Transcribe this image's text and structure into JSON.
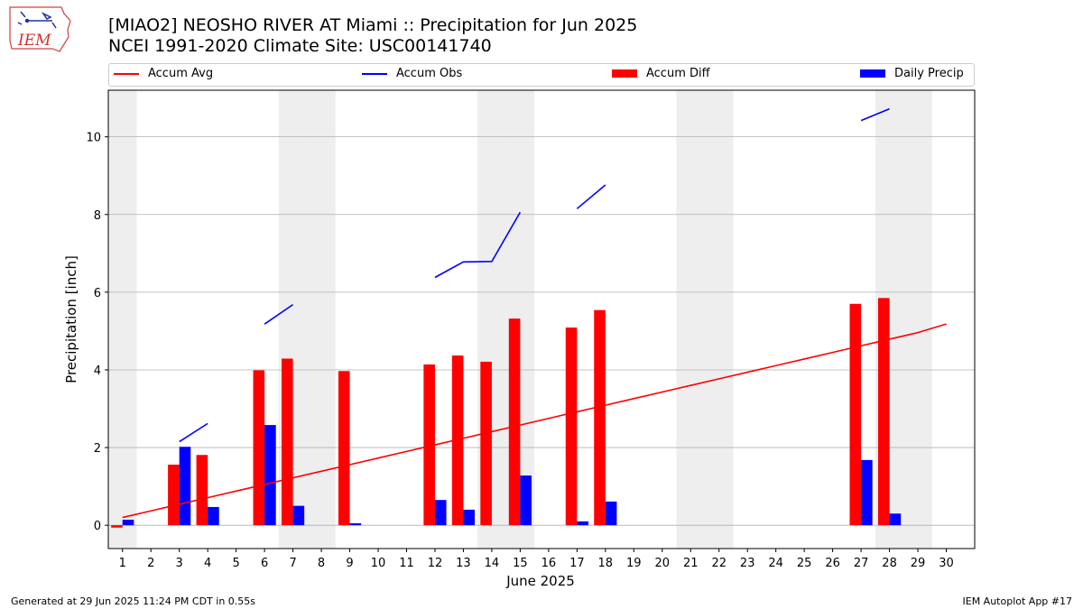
{
  "logo": {
    "text": "IEM"
  },
  "header": {
    "title": "[MIAO2] NEOSHO RIVER  AT Miami :: Precipitation for Jun 2025",
    "subtitle": "NCEI 1991-2020 Climate Site: USC00141740"
  },
  "legend": {
    "accum_avg": "Accum Avg",
    "accum_obs": "Accum Obs",
    "accum_diff": "Accum Diff",
    "daily_precip": "Daily Precip"
  },
  "colors": {
    "accum_avg": "#ff0000",
    "accum_obs": "#0000ff",
    "accum_diff": "#ff0000",
    "daily_precip": "#0000ff",
    "weekend_shade": "#eeeeee",
    "grid": "#b0b0b0"
  },
  "chart_data": {
    "type": "bar",
    "xlabel": "June 2025",
    "ylabel": "Precipitation [inch]",
    "xlim": [
      0.5,
      31
    ],
    "ylim": [
      -0.6,
      11.2
    ],
    "yticks": [
      0,
      2,
      4,
      6,
      8,
      10
    ],
    "grid": "horizontal",
    "legend_position": "top",
    "x": [
      1,
      2,
      3,
      4,
      5,
      6,
      7,
      8,
      9,
      10,
      11,
      12,
      13,
      14,
      15,
      16,
      17,
      18,
      19,
      20,
      21,
      22,
      23,
      24,
      25,
      26,
      27,
      28,
      29,
      30
    ],
    "weekend_days": [
      1,
      7,
      8,
      14,
      15,
      21,
      22,
      28,
      29
    ],
    "series": [
      {
        "name": "Accum Avg",
        "type": "line",
        "values": [
          0.2,
          0.37,
          0.54,
          0.71,
          0.88,
          1.05,
          1.22,
          1.39,
          1.56,
          1.73,
          1.9,
          2.07,
          2.24,
          2.41,
          2.58,
          2.75,
          2.92,
          3.09,
          3.26,
          3.43,
          3.6,
          3.77,
          3.94,
          4.11,
          4.28,
          4.45,
          4.62,
          4.79,
          4.96,
          5.18
        ]
      },
      {
        "name": "Accum Obs",
        "type": "line",
        "segments": [
          {
            "x": [
              3,
              4
            ],
            "y": [
              2.15,
              2.62
            ]
          },
          {
            "x": [
              6,
              7
            ],
            "y": [
              5.18,
              5.68
            ]
          },
          {
            "x": [
              12,
              13,
              14,
              15
            ],
            "y": [
              6.38,
              6.78,
              6.79,
              8.06
            ]
          },
          {
            "x": [
              17,
              18
            ],
            "y": [
              8.15,
              8.76
            ]
          },
          {
            "x": [
              27,
              28
            ],
            "y": [
              10.42,
              10.72
            ]
          }
        ]
      },
      {
        "name": "Accum Diff",
        "type": "bar",
        "values": [
          -0.06,
          0,
          1.56,
          1.81,
          0,
          3.99,
          4.29,
          0,
          3.97,
          0,
          0,
          4.14,
          4.37,
          4.21,
          5.32,
          0,
          5.09,
          5.54,
          0,
          0,
          0,
          0,
          0,
          0,
          0,
          0,
          5.7,
          5.85,
          0,
          0
        ]
      },
      {
        "name": "Daily Precip",
        "type": "bar",
        "values": [
          0.14,
          0,
          2.02,
          0.47,
          0,
          2.58,
          0.5,
          0,
          0.05,
          0,
          0,
          0.65,
          0.4,
          0,
          1.28,
          0,
          0.1,
          0.61,
          0,
          0,
          0,
          0,
          0,
          0,
          0,
          0,
          1.68,
          0.3,
          0,
          0
        ]
      }
    ]
  },
  "footer": {
    "left": "Generated at 29 Jun 2025 11:24 PM CDT in 0.55s",
    "right": "IEM Autoplot App #17"
  }
}
